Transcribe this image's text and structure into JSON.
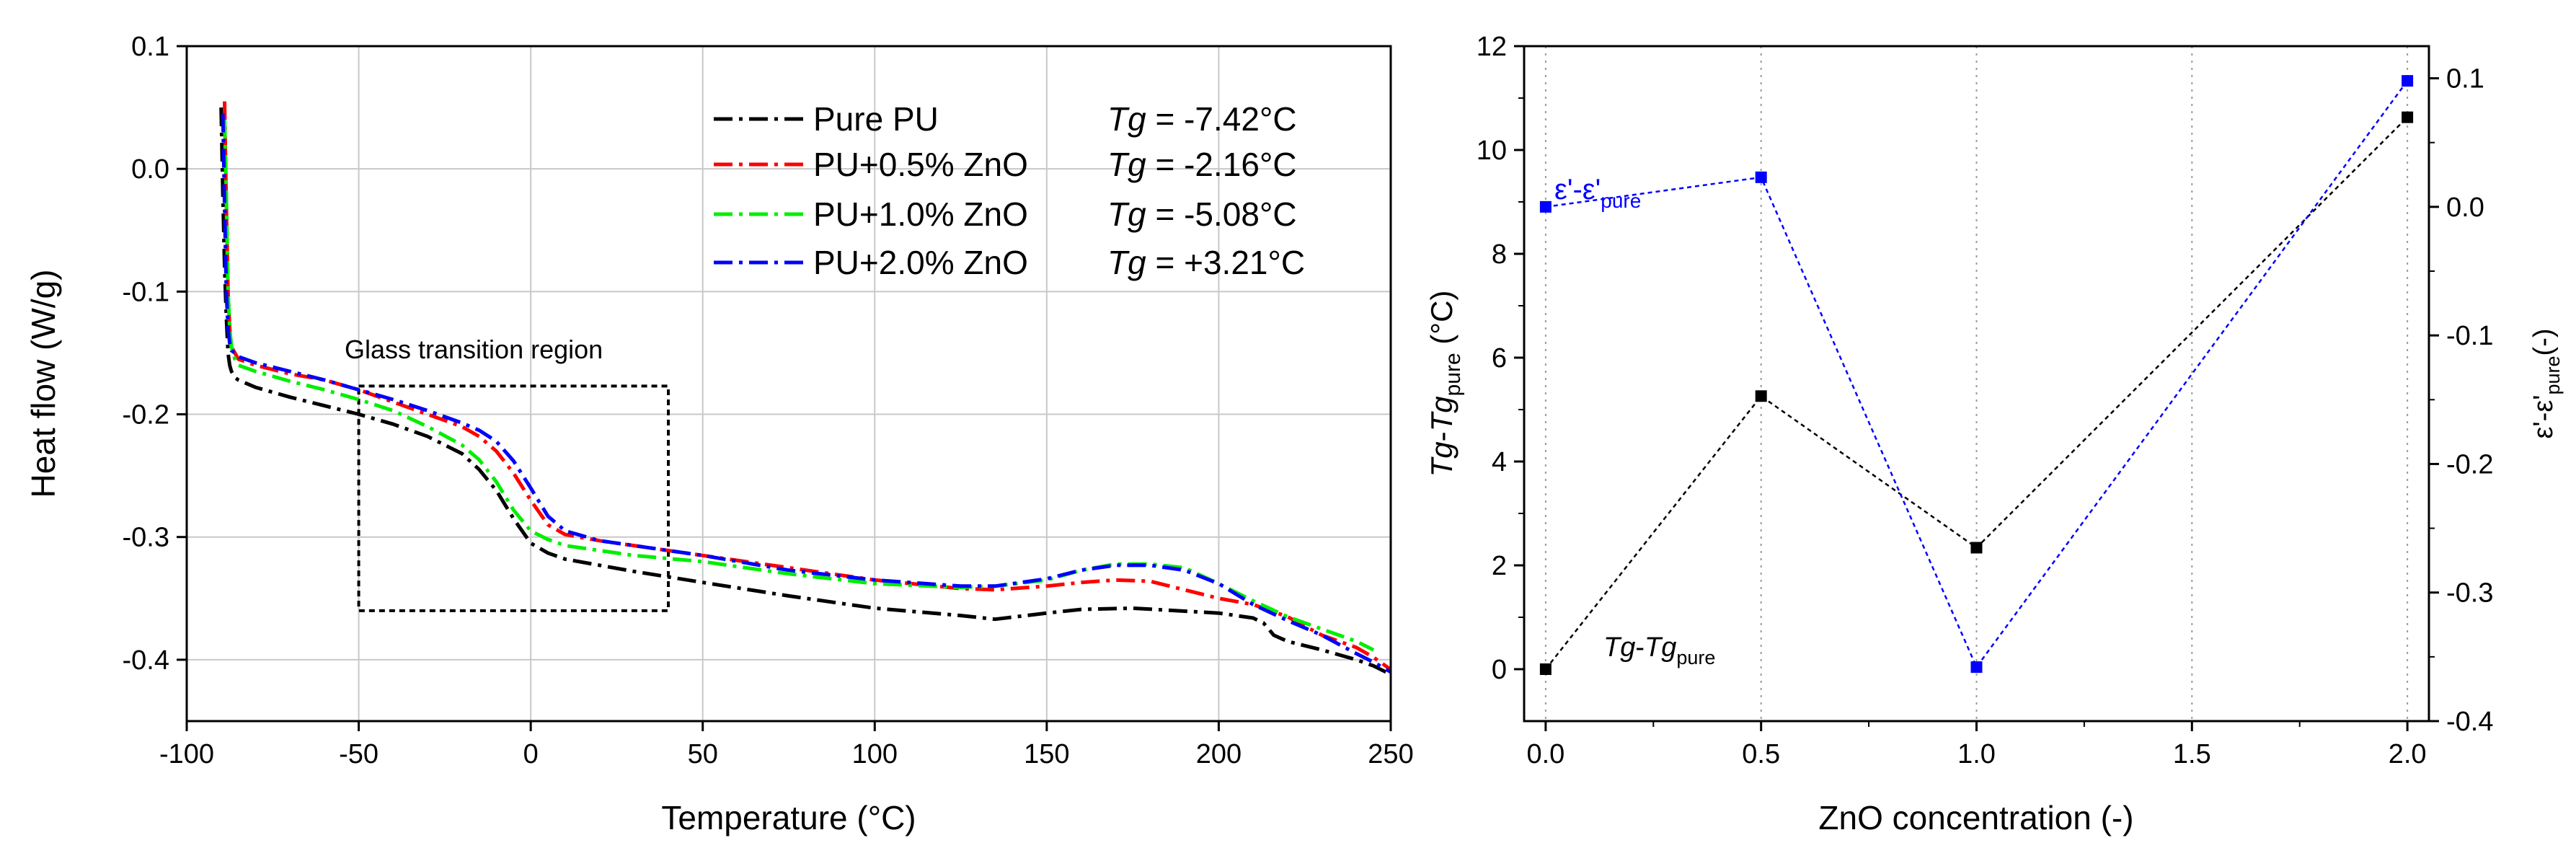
{
  "chart_data": [
    {
      "type": "line",
      "xlabel": "Temperature (°C)",
      "ylabel": "Heat flow (W/g)",
      "xlim": [
        -100,
        250
      ],
      "ylim": [
        -0.45,
        0.1
      ],
      "xticks": [
        "-100",
        "-50",
        "0",
        "50",
        "100",
        "150",
        "200",
        "250"
      ],
      "yticks": [
        "0.1",
        "0.0",
        "-0.1",
        "-0.2",
        "-0.3",
        "-0.4"
      ],
      "grid": true,
      "legend_position": "top-right",
      "tg_label": "Tg",
      "series": [
        {
          "name": "Pure PU",
          "tg": " = -7.42°C",
          "color": "#000000",
          "x": [
            -90,
            -89.5,
            -89,
            -88.5,
            -88,
            -87.5,
            -87,
            -86,
            -85,
            -80,
            -70,
            -60,
            -50,
            -40,
            -30,
            -20,
            -15,
            -10,
            -5,
            0,
            5,
            10,
            20,
            30,
            50,
            75,
            100,
            125,
            135,
            150,
            160,
            175,
            200,
            210,
            213,
            216,
            220,
            230,
            240,
            245,
            250
          ],
          "y": [
            0.05,
            -0.02,
            -0.08,
            -0.12,
            -0.15,
            -0.16,
            -0.165,
            -0.17,
            -0.172,
            -0.178,
            -0.186,
            -0.193,
            -0.2,
            -0.208,
            -0.218,
            -0.232,
            -0.245,
            -0.262,
            -0.285,
            -0.305,
            -0.313,
            -0.318,
            -0.323,
            -0.328,
            -0.337,
            -0.348,
            -0.358,
            -0.364,
            -0.367,
            -0.362,
            -0.359,
            -0.358,
            -0.362,
            -0.366,
            -0.37,
            -0.38,
            -0.385,
            -0.392,
            -0.4,
            -0.405,
            -0.412
          ]
        },
        {
          "name": "PU+0.5% ZnO",
          "tg": " = -2.16°C",
          "color": "#ff0000",
          "x": [
            -89,
            -88.5,
            -88,
            -87.5,
            -87,
            -86,
            -85,
            -80,
            -70,
            -60,
            -50,
            -40,
            -30,
            -20,
            -15,
            -10,
            -5,
            0,
            5,
            10,
            20,
            30,
            50,
            75,
            100,
            125,
            135,
            150,
            160,
            170,
            180,
            190,
            200,
            210,
            220,
            230,
            240,
            245,
            250
          ],
          "y": [
            0.055,
            -0.03,
            -0.1,
            -0.13,
            -0.145,
            -0.15,
            -0.155,
            -0.16,
            -0.167,
            -0.172,
            -0.18,
            -0.19,
            -0.2,
            -0.21,
            -0.218,
            -0.23,
            -0.248,
            -0.27,
            -0.29,
            -0.298,
            -0.303,
            -0.307,
            -0.315,
            -0.325,
            -0.335,
            -0.342,
            -0.343,
            -0.34,
            -0.337,
            -0.335,
            -0.336,
            -0.343,
            -0.35,
            -0.355,
            -0.365,
            -0.38,
            -0.39,
            -0.398,
            -0.408
          ]
        },
        {
          "name": "PU+1.0% ZnO",
          "tg": " = -5.08°C",
          "color": "#00ee00",
          "x": [
            -89,
            -88.5,
            -88,
            -87.5,
            -87,
            -86,
            -85,
            -80,
            -70,
            -60,
            -50,
            -40,
            -30,
            -20,
            -15,
            -10,
            -5,
            0,
            5,
            10,
            20,
            30,
            50,
            75,
            100,
            125,
            135,
            150,
            160,
            170,
            180,
            190,
            200,
            210,
            220,
            230,
            240,
            245
          ],
          "y": [
            0.04,
            -0.02,
            -0.1,
            -0.13,
            -0.145,
            -0.155,
            -0.16,
            -0.165,
            -0.173,
            -0.18,
            -0.188,
            -0.197,
            -0.21,
            -0.225,
            -0.237,
            -0.255,
            -0.278,
            -0.295,
            -0.302,
            -0.307,
            -0.311,
            -0.315,
            -0.32,
            -0.33,
            -0.338,
            -0.341,
            -0.34,
            -0.335,
            -0.327,
            -0.322,
            -0.322,
            -0.325,
            -0.338,
            -0.352,
            -0.365,
            -0.375,
            -0.385,
            -0.392
          ]
        },
        {
          "name": "PU+2.0% ZnO",
          "tg": " = +3.21°C",
          "color": "#0000ff",
          "x": [
            -89.5,
            -89,
            -88.5,
            -88,
            -87.5,
            -87,
            -86,
            -85,
            -80,
            -70,
            -60,
            -50,
            -40,
            -30,
            -20,
            -15,
            -10,
            -5,
            0,
            5,
            10,
            20,
            30,
            50,
            75,
            100,
            125,
            135,
            150,
            160,
            170,
            180,
            190,
            200,
            210,
            220,
            230,
            240,
            245,
            250
          ],
          "y": [
            0.045,
            -0.03,
            -0.1,
            -0.13,
            -0.142,
            -0.148,
            -0.15,
            -0.153,
            -0.158,
            -0.165,
            -0.172,
            -0.18,
            -0.188,
            -0.197,
            -0.207,
            -0.213,
            -0.222,
            -0.238,
            -0.26,
            -0.283,
            -0.295,
            -0.303,
            -0.307,
            -0.315,
            -0.327,
            -0.335,
            -0.34,
            -0.34,
            -0.334,
            -0.327,
            -0.323,
            -0.323,
            -0.327,
            -0.338,
            -0.355,
            -0.368,
            -0.38,
            -0.395,
            -0.402,
            -0.41
          ]
        }
      ],
      "annotations": [
        {
          "text": "Glass transition region",
          "box_x": [
            -50,
            40
          ],
          "box_y": [
            -0.36,
            -0.177
          ]
        }
      ]
    },
    {
      "type": "line",
      "xlabel": "ZnO concentration (-)",
      "xlim": [
        -0.05,
        2.05
      ],
      "xticks": [
        "0.0",
        "0.5",
        "1.0",
        "1.5",
        "2.0"
      ],
      "ylabel_left": {
        "a": "Tg",
        "b": "-",
        "c": "Tg",
        "sub": "pure",
        "d": " (°C)"
      },
      "ylim_left": [
        -1,
        12
      ],
      "yticks_left": [
        "0",
        "2",
        "4",
        "6",
        "8",
        "10",
        "12"
      ],
      "ylabel_right": {
        "a": "ε'-ε'",
        "sub": "pure",
        "d": "(-)"
      },
      "ylim_right": [
        -0.4,
        0.125
      ],
      "yticks_right": [
        "0.1",
        "0.0",
        "-0.1",
        "-0.2",
        "-0.3",
        "-0.4"
      ],
      "series": [
        {
          "name": "Tg-Tg_pure",
          "color": "#000000",
          "axis": "left",
          "x": [
            0.0,
            0.5,
            1.0,
            2.0
          ],
          "y": [
            0,
            5.26,
            2.34,
            10.63
          ]
        },
        {
          "name": "eps-eps_pure",
          "color": "#0000ff",
          "axis": "right",
          "x": [
            0.0,
            0.5,
            1.0,
            2.0
          ],
          "y": [
            0.0,
            0.023,
            -0.358,
            0.098
          ]
        }
      ],
      "labels": {
        "black": {
          "a": "Tg",
          "b": "-",
          "c": "Tg",
          "sub": "pure"
        },
        "blue": {
          "a": "ε'-ε'",
          "sub": "pure"
        }
      }
    }
  ]
}
